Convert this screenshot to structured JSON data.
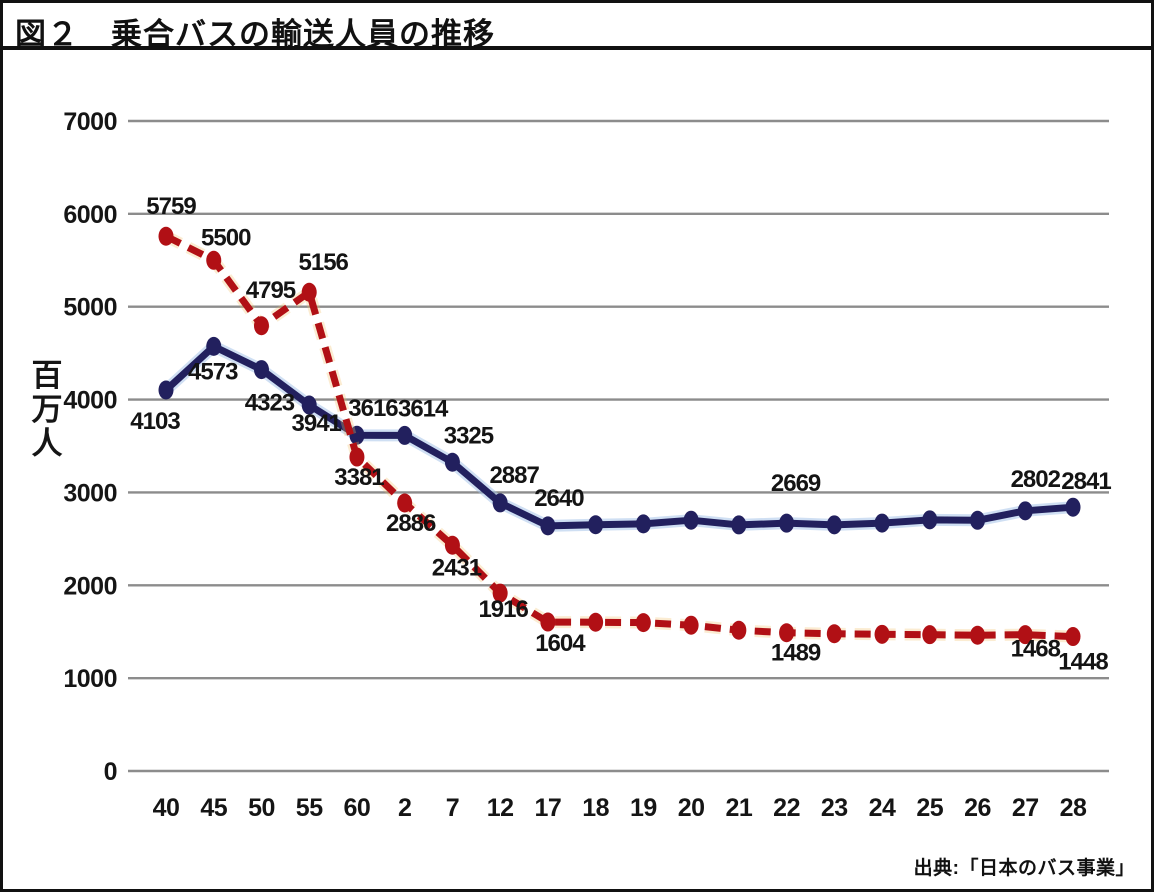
{
  "title": "図２　乗合バスの輸送人員の推移",
  "source": "出典:「日本のバス事業」",
  "chart_data": {
    "type": "line",
    "title": "図２　乗合バスの輸送人員の推移",
    "xlabel": "",
    "ylabel": "百万人",
    "ylim": [
      0,
      7000
    ],
    "yticks": [
      0,
      1000,
      2000,
      3000,
      4000,
      5000,
      6000,
      7000
    ],
    "grid": true,
    "legend_position": "none",
    "categories": [
      "40",
      "45",
      "50",
      "55",
      "60",
      "2",
      "7",
      "12",
      "17",
      "18",
      "19",
      "20",
      "21",
      "22",
      "23",
      "24",
      "25",
      "26",
      "27",
      "28"
    ],
    "series": [
      {
        "name": "navy-solid-series",
        "color": "#22205e",
        "halo_color": "#9fc0e8",
        "line_style": "solid",
        "dash": "",
        "values": [
          4103,
          4573,
          4323,
          3941,
          3616,
          3614,
          3325,
          2887,
          2640,
          2652,
          2661,
          2701,
          2650,
          2669,
          2651,
          2670,
          2705,
          2700,
          2802,
          2841
        ],
        "point_labels": [
          {
            "i": 0,
            "text": "4103",
            "dx": -11,
            "dy": 39
          },
          {
            "i": 1,
            "text": "4573",
            "dx": -1,
            "dy": 33
          },
          {
            "i": 2,
            "text": "4323",
            "dx": 8,
            "dy": 41
          },
          {
            "i": 3,
            "text": "3941",
            "dx": 7,
            "dy": 26
          },
          {
            "i": 4,
            "text": "3616",
            "dx": 16,
            "dy": -19
          },
          {
            "i": 5,
            "text": "3614",
            "dx": 18,
            "dy": -19
          },
          {
            "i": 6,
            "text": "3325",
            "dx": 16,
            "dy": -19
          },
          {
            "i": 7,
            "text": "2887",
            "dx": 14,
            "dy": -20
          },
          {
            "i": 8,
            "text": "2640",
            "dx": 11,
            "dy": -20
          },
          {
            "i": 13,
            "text": "2669",
            "dx": 9,
            "dy": -32
          },
          {
            "i": 18,
            "text": "2802",
            "dx": 10,
            "dy": -24
          },
          {
            "i": 19,
            "text": "2841",
            "dx": 13,
            "dy": -18
          }
        ]
      },
      {
        "name": "red-dashed-series",
        "color": "#b11015",
        "halo_color": "#f2c06a",
        "line_style": "dashed",
        "dash": "16 9",
        "values": [
          5759,
          5500,
          4795,
          5156,
          3381,
          2886,
          2431,
          1916,
          1604,
          1602,
          1598,
          1570,
          1516,
          1489,
          1478,
          1472,
          1468,
          1462,
          1468,
          1448
        ],
        "point_labels": [
          {
            "i": 0,
            "text": "5759",
            "dx": 5,
            "dy": -22
          },
          {
            "i": 1,
            "text": "5500",
            "dx": 12,
            "dy": -15
          },
          {
            "i": 2,
            "text": "4795",
            "dx": 9,
            "dy": -28
          },
          {
            "i": 3,
            "text": "5156",
            "dx": 14,
            "dy": -22
          },
          {
            "i": 4,
            "text": "3381",
            "dx": 2,
            "dy": 28
          },
          {
            "i": 5,
            "text": "2886",
            "dx": 6,
            "dy": 28
          },
          {
            "i": 6,
            "text": "2431",
            "dx": 4,
            "dy": 30
          },
          {
            "i": 7,
            "text": "1916",
            "dx": 3,
            "dy": 24
          },
          {
            "i": 8,
            "text": "1604",
            "dx": 12,
            "dy": 29
          },
          {
            "i": 13,
            "text": "1489",
            "dx": 9,
            "dy": 28
          },
          {
            "i": 18,
            "text": "1468",
            "dx": 10,
            "dy": 22
          },
          {
            "i": 19,
            "text": "1448",
            "dx": 10,
            "dy": 33
          }
        ]
      }
    ]
  }
}
